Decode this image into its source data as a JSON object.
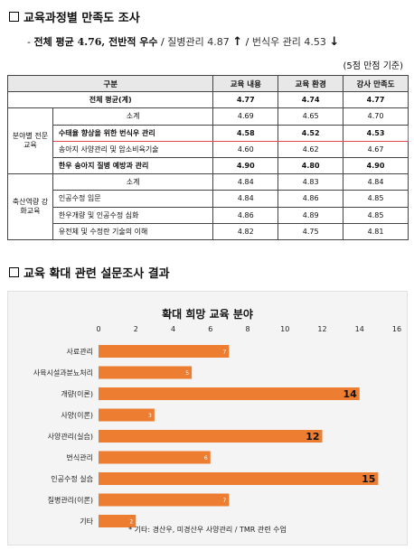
{
  "section1": {
    "title": "교육과정별 만족도 조사"
  },
  "summary": {
    "dash": "-",
    "bold_text": "전체 평균 4.76, 전반적 우수",
    "sep1": "/",
    "item1": "질병관리 4.87",
    "arrow1": "↑",
    "sep2": "/",
    "item2": "번식우 관리 4.53",
    "arrow2": "↓"
  },
  "note": "(5점 만점 기준)",
  "table": {
    "headers": [
      "구분",
      "교육 내용",
      "교육 환경",
      "강사 만족도"
    ],
    "avg_row": {
      "label": "전체 평균(계)",
      "values": [
        "4.77",
        "4.74",
        "4.77"
      ]
    },
    "groups": [
      {
        "name": "분야별 전문교육",
        "rows": [
          {
            "label": "소계",
            "values": [
              "4.69",
              "4.65",
              "4.70"
            ]
          },
          {
            "label": "수태율 향상을 위한 번식우 관리",
            "values": [
              "4.58",
              "4.52",
              "4.53"
            ]
          },
          {
            "label": "송아지 사양관리 및 암소비육기술",
            "values": [
              "4.60",
              "4.62",
              "4.67"
            ]
          },
          {
            "label": "한우 송아지 질병 예방과 관리",
            "values": [
              "4.90",
              "4.80",
              "4.90"
            ]
          }
        ]
      },
      {
        "name": "축산역량 강화교육",
        "rows": [
          {
            "label": "소계",
            "values": [
              "4.84",
              "4.83",
              "4.84"
            ]
          },
          {
            "label": "인공수정 입문",
            "values": [
              "4.84",
              "4.86",
              "4.85"
            ]
          },
          {
            "label": "한우개량 및 인공수정 심화",
            "values": [
              "4.86",
              "4.89",
              "4.85"
            ]
          },
          {
            "label": "유전체 및 수정란 기술의 이해",
            "values": [
              "4.82",
              "4.75",
              "4.81"
            ]
          }
        ]
      }
    ]
  },
  "section2": {
    "title": "교육 확대 관련 설문조사 결과"
  },
  "chart_data": {
    "type": "bar",
    "orientation": "horizontal",
    "title": "확대 희망 교육 분야",
    "categories": [
      "사료관리",
      "사육시설과분뇨처리",
      "개량(이론)",
      "사양(이론)",
      "사양관리(실습)",
      "번식관리",
      "인공수정 실습",
      "질병관리(이론)",
      "기타"
    ],
    "values": [
      7,
      5,
      14,
      3,
      12,
      6,
      15,
      7,
      2
    ],
    "xlim": [
      0,
      16
    ],
    "xticks": [
      0,
      2,
      4,
      6,
      8,
      10,
      12,
      14,
      16
    ],
    "grid": false,
    "bar_color": "#ed7d31",
    "footnote": "* 기타: 경산우, 미경산우 사양관리 / TMR 관련 수업"
  }
}
